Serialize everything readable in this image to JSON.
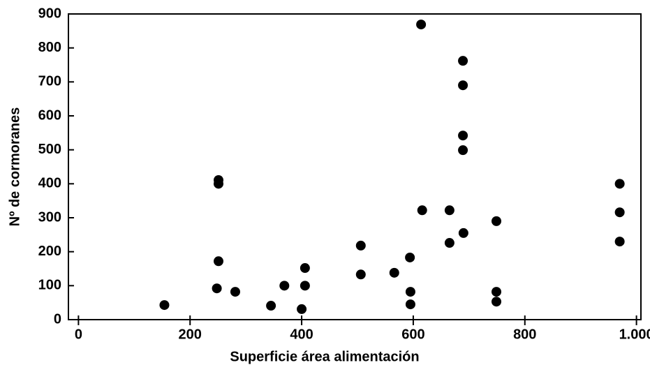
{
  "chart_data": {
    "type": "scatter",
    "x_label": "Superficie  área  alimentación",
    "y_label": "Nº  de  cormoranes",
    "color": "#000000",
    "x": [
      154,
      251,
      251,
      251,
      248,
      281,
      345,
      369,
      400,
      406,
      406,
      506,
      506,
      566,
      594,
      595,
      595,
      614,
      616,
      665,
      665,
      689,
      689,
      689,
      689,
      690,
      749,
      749,
      749,
      970,
      970,
      970
    ],
    "values": [
      43,
      411,
      400,
      172,
      92,
      82,
      41,
      100,
      31,
      152,
      100,
      218,
      133,
      138,
      183,
      82,
      45,
      869,
      322,
      322,
      226,
      762,
      690,
      542,
      499,
      255,
      290,
      82,
      53,
      400,
      316,
      230
    ],
    "xlim": [
      -18,
      1008
    ],
    "ylim": [
      0,
      900
    ],
    "xticks": [
      0,
      200,
      400,
      600,
      800,
      {
        "value": 1000,
        "label": "1.000"
      }
    ],
    "yticks": [
      0,
      100,
      200,
      300,
      400,
      500,
      600,
      700,
      800,
      900
    ]
  }
}
